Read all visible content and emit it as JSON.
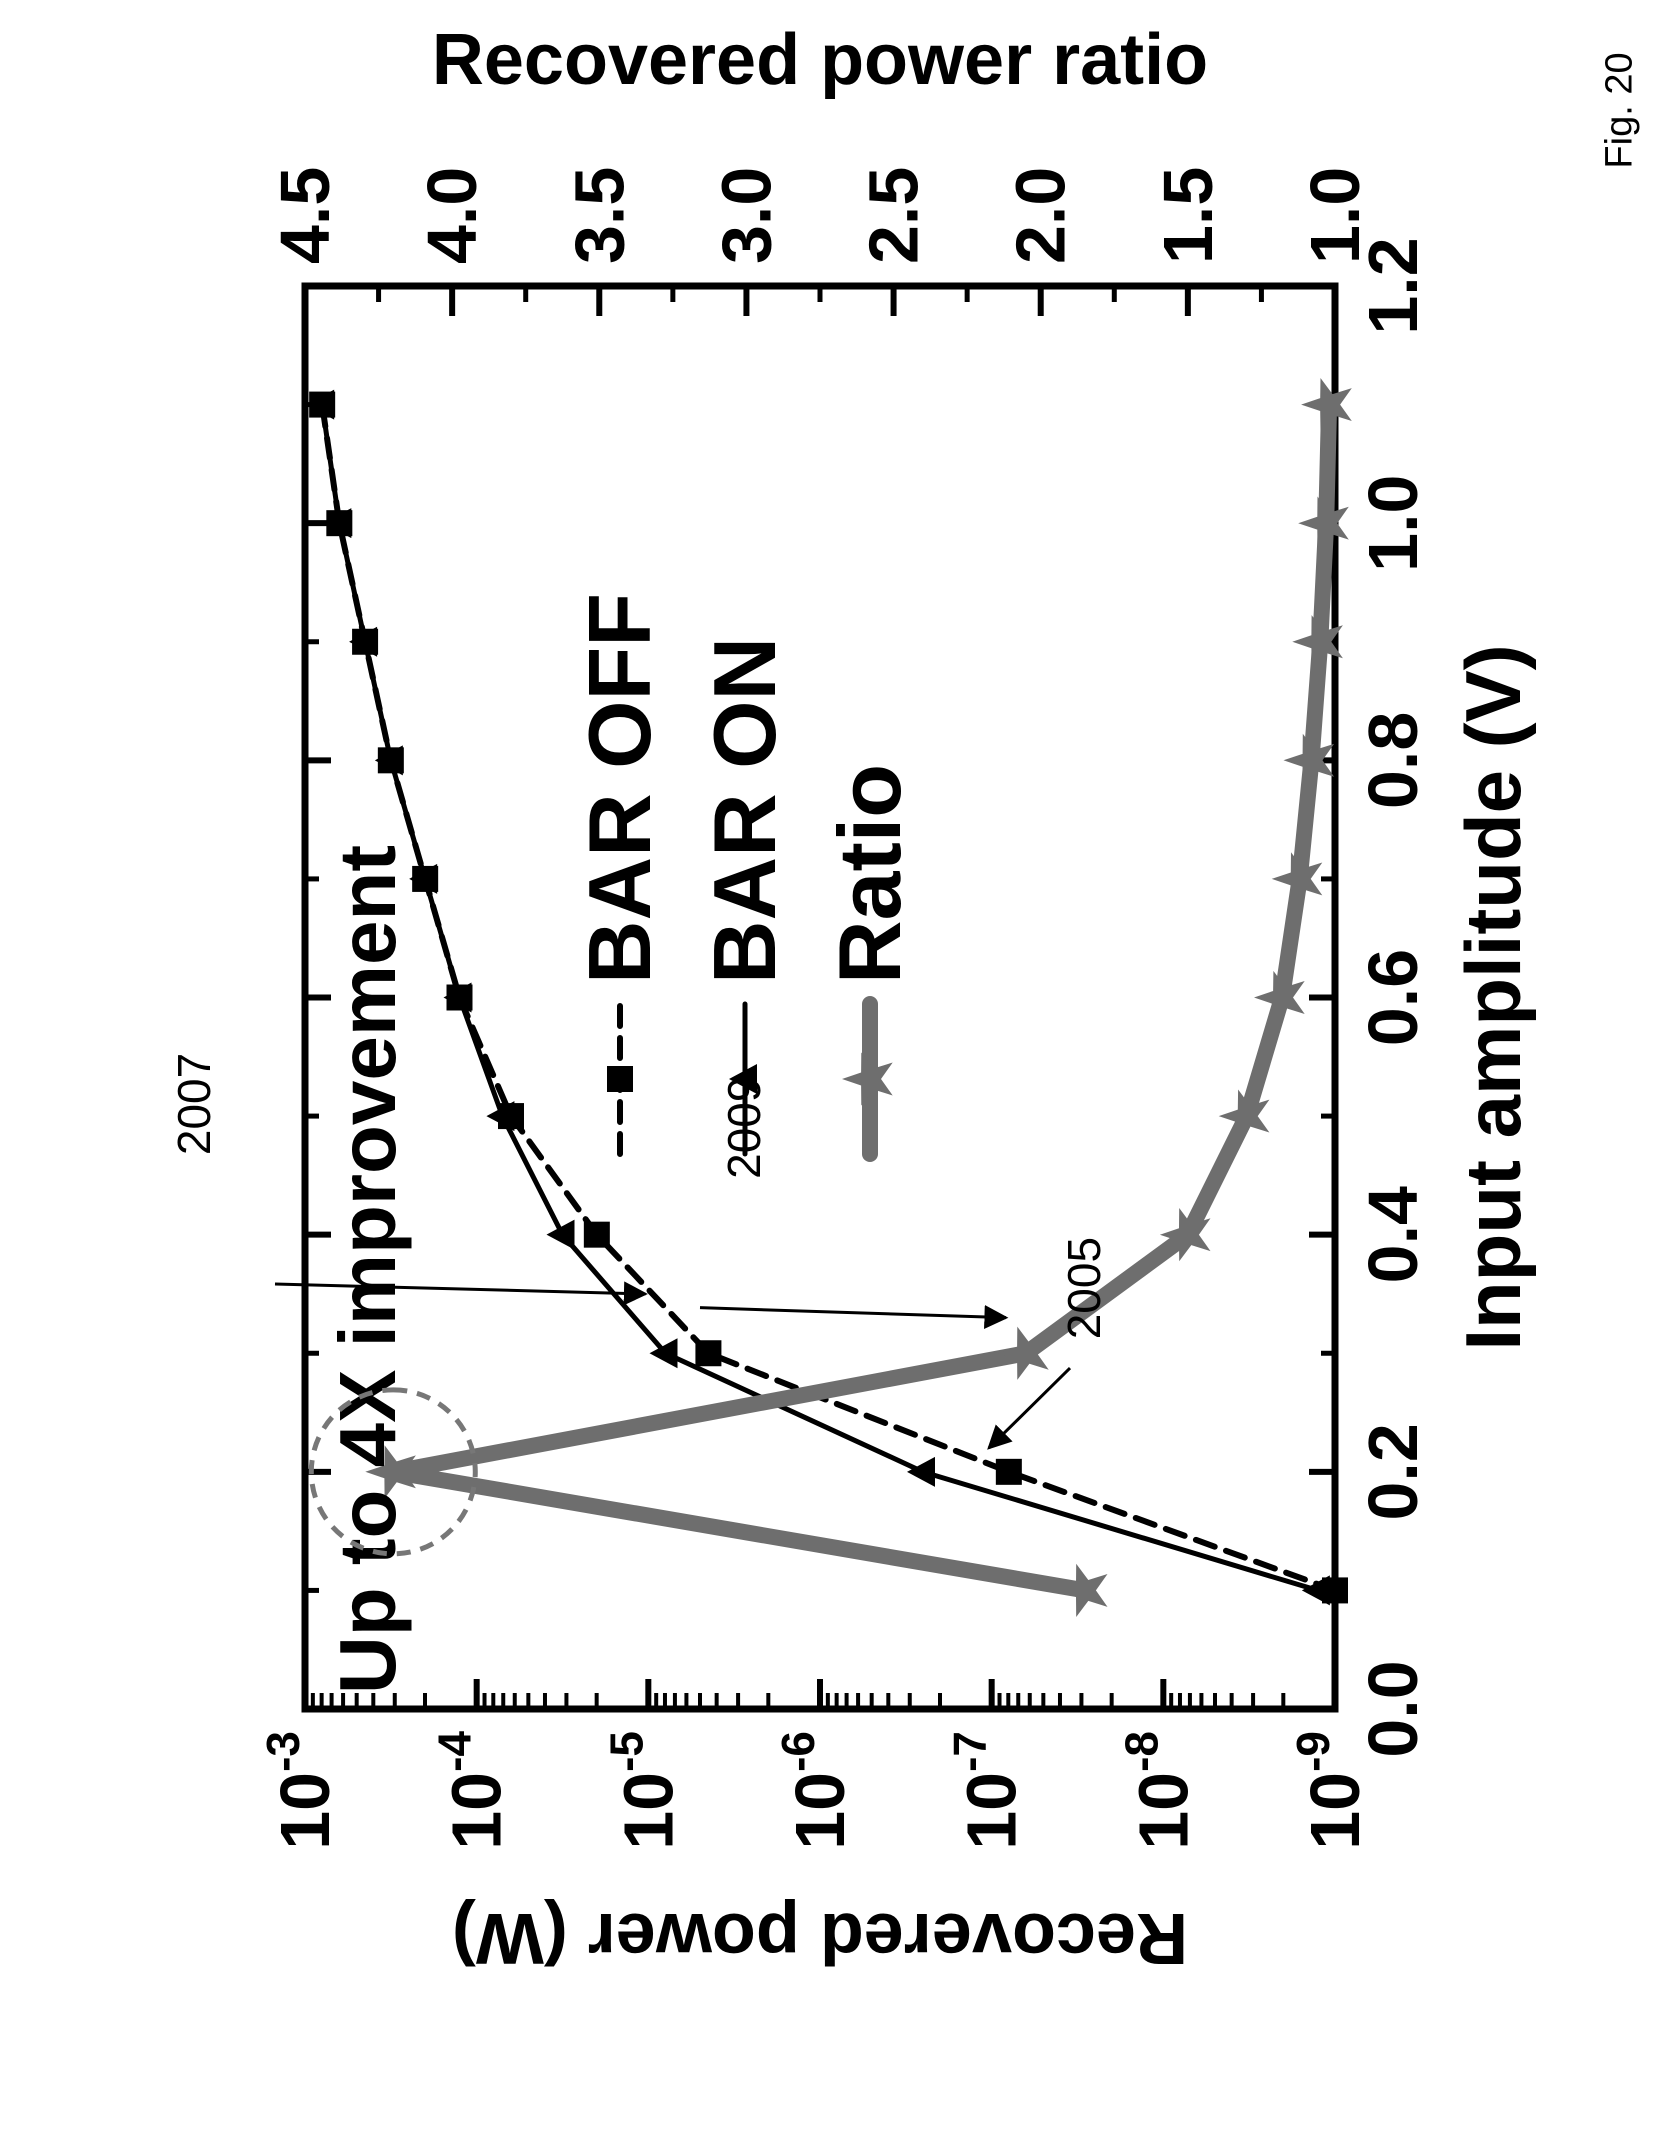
{
  "figure_label": "Fig. 20",
  "chart_data": {
    "type": "line",
    "orientation_note": "rotated 90 degrees counter-clockwise",
    "annotation_title": "Up to 4X improvement",
    "xlabel": "Input amplitude (V)",
    "ylabel": "Recovered power (W)",
    "y2label": "Recovered power ratio",
    "xlim": [
      0.0,
      1.2
    ],
    "ylim_log10": [
      -9,
      -3
    ],
    "y2lim": [
      1.0,
      4.5
    ],
    "yscale": "log",
    "x_ticks": [
      "0.0",
      "0.2",
      "0.4",
      "0.6",
      "0.8",
      "1.0",
      "1.2"
    ],
    "y_ticks": [
      {
        "base": "10",
        "exp": "-3"
      },
      {
        "base": "10",
        "exp": "-4"
      },
      {
        "base": "10",
        "exp": "-5"
      },
      {
        "base": "10",
        "exp": "-6"
      },
      {
        "base": "10",
        "exp": "-7"
      },
      {
        "base": "10",
        "exp": "-8"
      },
      {
        "base": "10",
        "exp": "-9"
      }
    ],
    "y2_ticks": [
      "4.5",
      "4.0",
      "3.5",
      "3.0",
      "2.5",
      "2.0",
      "1.5",
      "1.0"
    ],
    "legend_position": "center",
    "grid": false,
    "series": [
      {
        "name": "BAR OFF",
        "axis": "left",
        "style": "dashed",
        "marker": "square",
        "x": [
          0.1,
          0.2,
          0.3,
          0.4,
          0.5,
          0.6,
          0.7,
          0.8,
          0.9,
          1.0,
          1.1
        ],
        "y_log10": [
          -9.0,
          -7.1,
          -5.35,
          -4.7,
          -4.2,
          -3.9,
          -3.7,
          -3.5,
          -3.35,
          -3.2,
          -3.1
        ]
      },
      {
        "name": "BAR ON",
        "axis": "left",
        "style": "solid",
        "marker": "triangle",
        "x": [
          0.1,
          0.2,
          0.3,
          0.4,
          0.5,
          0.6,
          0.7,
          0.8,
          0.9,
          1.0,
          1.1
        ],
        "y_log10": [
          -8.9,
          -6.6,
          -5.1,
          -4.5,
          -4.15,
          -3.9,
          -3.7,
          -3.5,
          -3.35,
          -3.2,
          -3.1
        ]
      },
      {
        "name": "Ratio",
        "axis": "right",
        "style": "thick",
        "marker": "star",
        "x": [
          0.1,
          0.2,
          0.3,
          0.4,
          0.5,
          0.6,
          0.7,
          0.8,
          0.9,
          1.0,
          1.1
        ],
        "y": [
          1.85,
          4.2,
          2.05,
          1.5,
          1.3,
          1.18,
          1.12,
          1.08,
          1.05,
          1.03,
          1.02
        ]
      }
    ],
    "annotations": [
      {
        "text": "2007",
        "target_series": "BAR ON",
        "target_x": 0.35
      },
      {
        "text": "2009",
        "target_series": "Ratio",
        "target_x": 0.33
      },
      {
        "text": "2005",
        "target_series": "BAR OFF",
        "target_x": 0.22
      }
    ]
  },
  "colors": {
    "ink": "#000000",
    "series_gray": "#6e6e6e",
    "highlight_circle": "#777777"
  }
}
